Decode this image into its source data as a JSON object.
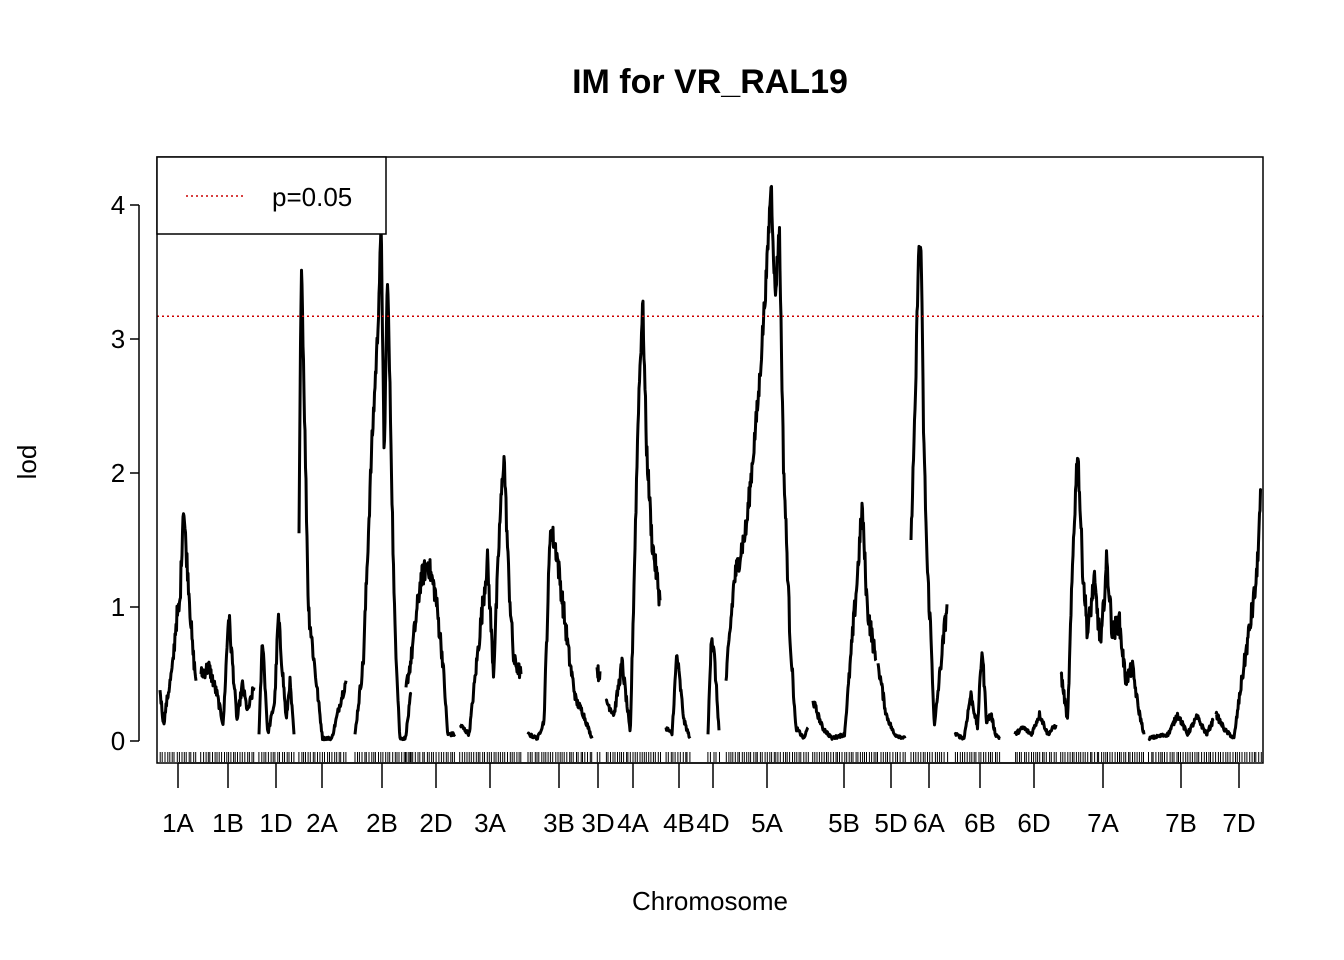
{
  "chart_data": {
    "type": "line",
    "title": "IM for VR_RAL19",
    "xlabel": "Chromosome",
    "ylabel": "lod",
    "ylim": [
      -0.15,
      4.4
    ],
    "yticks": [
      0,
      1,
      2,
      3,
      4
    ],
    "threshold": {
      "value": 3.17,
      "label": "p=0.05",
      "color": "#cc0000",
      "style": "dotted"
    },
    "legend_position": "top-left",
    "line_color": "#000000",
    "chromosomes": [
      {
        "name": "1A",
        "peaks": [
          [
            0,
            0.38
          ],
          [
            0.1,
            0.12
          ],
          [
            0.18,
            0.28
          ],
          [
            0.35,
            0.55
          ],
          [
            0.45,
            0.9
          ],
          [
            0.55,
            1.0
          ],
          [
            0.65,
            1.78
          ],
          [
            0.72,
            1.45
          ],
          [
            0.8,
            1.15
          ],
          [
            0.9,
            0.7
          ],
          [
            1,
            0.45
          ]
        ]
      },
      {
        "name": "1B",
        "peaks": [
          [
            0,
            0.5
          ],
          [
            0.15,
            0.55
          ],
          [
            0.3,
            0.35
          ],
          [
            0.42,
            0.12
          ],
          [
            0.52,
            0.95
          ],
          [
            0.6,
            0.55
          ],
          [
            0.68,
            0.15
          ],
          [
            0.78,
            0.42
          ],
          [
            0.88,
            0.22
          ],
          [
            1,
            0.4
          ]
        ]
      },
      {
        "name": "1D",
        "peaks": [
          [
            0,
            0.05
          ],
          [
            0.1,
            0.78
          ],
          [
            0.25,
            0.05
          ],
          [
            0.45,
            0.3
          ],
          [
            0.55,
            0.92
          ],
          [
            0.65,
            0.6
          ],
          [
            0.78,
            0.15
          ],
          [
            0.88,
            0.45
          ],
          [
            1,
            0.05
          ]
        ]
      },
      {
        "name": "2A",
        "peaks": [
          [
            0,
            1.55
          ],
          [
            0.05,
            3.66
          ],
          [
            0.12,
            2.4
          ],
          [
            0.2,
            1.0
          ],
          [
            0.35,
            0.5
          ],
          [
            0.5,
            0.02
          ],
          [
            0.7,
            0.02
          ],
          [
            0.85,
            0.25
          ],
          [
            1,
            0.45
          ]
        ]
      },
      {
        "name": "2B",
        "peaks": [
          [
            0,
            0.05
          ],
          [
            0.15,
            0.6
          ],
          [
            0.3,
            2.2
          ],
          [
            0.4,
            3.0
          ],
          [
            0.47,
            3.85
          ],
          [
            0.52,
            2.05
          ],
          [
            0.58,
            3.5
          ],
          [
            0.64,
            2.3
          ],
          [
            0.7,
            1.0
          ],
          [
            0.8,
            0.02
          ],
          [
            0.9,
            0.02
          ],
          [
            1,
            0.35
          ]
        ]
      },
      {
        "name": "2D",
        "peaks": [
          [
            0,
            0.4
          ],
          [
            0.1,
            0.6
          ],
          [
            0.3,
            1.2
          ],
          [
            0.45,
            1.33
          ],
          [
            0.6,
            1.1
          ],
          [
            0.75,
            0.6
          ],
          [
            0.85,
            0.05
          ],
          [
            1,
            0.05
          ]
        ]
      },
      {
        "name": "3A",
        "peaks": [
          [
            0,
            0.12
          ],
          [
            0.15,
            0.05
          ],
          [
            0.3,
            0.7
          ],
          [
            0.45,
            1.35
          ],
          [
            0.55,
            0.5
          ],
          [
            0.65,
            1.6
          ],
          [
            0.72,
            2.15
          ],
          [
            0.8,
            1.2
          ],
          [
            0.88,
            0.6
          ],
          [
            1,
            0.5
          ]
        ]
      },
      {
        "name": "3B",
        "peaks": [
          [
            0,
            0.05
          ],
          [
            0.15,
            0.02
          ],
          [
            0.25,
            0.15
          ],
          [
            0.35,
            1.6
          ],
          [
            0.45,
            1.4
          ],
          [
            0.55,
            1.0
          ],
          [
            0.65,
            0.6
          ],
          [
            0.75,
            0.3
          ],
          [
            0.85,
            0.22
          ],
          [
            1,
            0.02
          ]
        ]
      },
      {
        "name": "3D",
        "peaks": [
          [
            0,
            0.55
          ],
          [
            0.5,
            0.5
          ],
          [
            1,
            0.52
          ]
        ]
      },
      {
        "name": "4A",
        "peaks": [
          [
            0,
            0.3
          ],
          [
            0.15,
            0.2
          ],
          [
            0.3,
            0.58
          ],
          [
            0.45,
            0.05
          ],
          [
            0.6,
            2.5
          ],
          [
            0.68,
            3.28
          ],
          [
            0.75,
            2.2
          ],
          [
            0.85,
            1.5
          ],
          [
            1,
            1.05
          ]
        ]
      },
      {
        "name": "4B",
        "peaks": [
          [
            0,
            0.1
          ],
          [
            0.25,
            0.05
          ],
          [
            0.45,
            0.65
          ],
          [
            0.6,
            0.4
          ],
          [
            0.75,
            0.15
          ],
          [
            1,
            0.02
          ]
        ]
      },
      {
        "name": "4D",
        "peaks": [
          [
            0,
            0.05
          ],
          [
            0.3,
            0.82
          ],
          [
            0.6,
            0.6
          ],
          [
            1,
            0.08
          ]
        ]
      },
      {
        "name": "5A",
        "peaks": [
          [
            0,
            0.45
          ],
          [
            0.1,
            1.2
          ],
          [
            0.25,
            1.6
          ],
          [
            0.4,
            2.6
          ],
          [
            0.5,
            3.55
          ],
          [
            0.55,
            4.18
          ],
          [
            0.6,
            3.3
          ],
          [
            0.65,
            3.85
          ],
          [
            0.7,
            2.1
          ],
          [
            0.78,
            0.8
          ],
          [
            0.85,
            0.1
          ],
          [
            0.95,
            0.02
          ],
          [
            1,
            0.1
          ]
        ]
      },
      {
        "name": "5B",
        "peaks": [
          [
            0,
            0.3
          ],
          [
            0.15,
            0.1
          ],
          [
            0.3,
            0.02
          ],
          [
            0.5,
            0.05
          ],
          [
            0.7,
            1.2
          ],
          [
            0.78,
            1.75
          ],
          [
            0.86,
            1.0
          ],
          [
            1,
            0.6
          ]
        ]
      },
      {
        "name": "5D",
        "peaks": [
          [
            0,
            0.58
          ],
          [
            0.3,
            0.2
          ],
          [
            0.6,
            0.05
          ],
          [
            1,
            0.02
          ]
        ]
      },
      {
        "name": "6A",
        "peaks": [
          [
            0,
            1.5
          ],
          [
            0.12,
            2.5
          ],
          [
            0.2,
            3.6
          ],
          [
            0.28,
            3.7
          ],
          [
            0.35,
            2.3
          ],
          [
            0.45,
            1.3
          ],
          [
            0.55,
            0.8
          ],
          [
            0.65,
            0.1
          ],
          [
            0.8,
            0.5
          ],
          [
            1,
            1.02
          ]
        ]
      },
      {
        "name": "6B",
        "peaks": [
          [
            0,
            0.05
          ],
          [
            0.2,
            0.02
          ],
          [
            0.35,
            0.35
          ],
          [
            0.5,
            0.1
          ],
          [
            0.6,
            0.7
          ],
          [
            0.7,
            0.15
          ],
          [
            0.8,
            0.2
          ],
          [
            0.9,
            0.05
          ],
          [
            1,
            0.02
          ]
        ]
      },
      {
        "name": "6D",
        "peaks": [
          [
            0,
            0.05
          ],
          [
            0.2,
            0.1
          ],
          [
            0.4,
            0.05
          ],
          [
            0.6,
            0.2
          ],
          [
            0.8,
            0.05
          ],
          [
            1,
            0.12
          ]
        ]
      },
      {
        "name": "7A",
        "peaks": [
          [
            0,
            0.5
          ],
          [
            0.08,
            0.15
          ],
          [
            0.15,
            1.5
          ],
          [
            0.2,
            2.2
          ],
          [
            0.26,
            1.3
          ],
          [
            0.32,
            0.8
          ],
          [
            0.4,
            1.2
          ],
          [
            0.48,
            0.7
          ],
          [
            0.55,
            1.35
          ],
          [
            0.62,
            0.8
          ],
          [
            0.7,
            0.9
          ],
          [
            0.78,
            0.45
          ],
          [
            0.86,
            0.55
          ],
          [
            0.93,
            0.25
          ],
          [
            1,
            0.05
          ]
        ]
      },
      {
        "name": "7B",
        "peaks": [
          [
            0,
            0.02
          ],
          [
            0.3,
            0.05
          ],
          [
            0.45,
            0.2
          ],
          [
            0.6,
            0.05
          ],
          [
            0.75,
            0.18
          ],
          [
            0.9,
            0.05
          ],
          [
            1,
            0.15
          ]
        ]
      },
      {
        "name": "7D",
        "peaks": [
          [
            0,
            0.2
          ],
          [
            0.2,
            0.08
          ],
          [
            0.4,
            0.02
          ],
          [
            0.55,
            0.4
          ],
          [
            0.75,
            0.85
          ],
          [
            0.9,
            1.2
          ],
          [
            1,
            1.87
          ]
        ]
      }
    ]
  }
}
